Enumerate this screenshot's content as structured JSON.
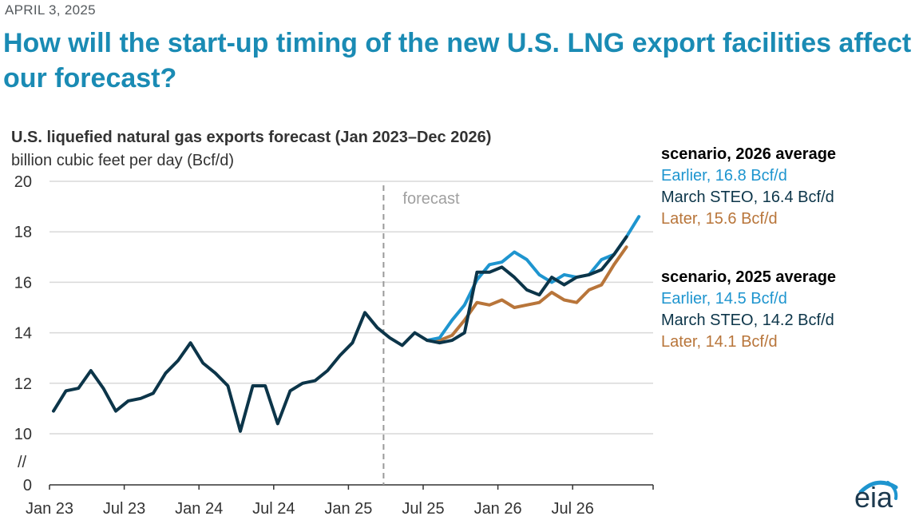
{
  "header": {
    "date": "APRIL 3, 2025",
    "headline": "How will the start-up timing of the new U.S. LNG export facilities affect our forecast?"
  },
  "chart_data": {
    "type": "line",
    "title": "U.S. liquefied natural gas exports forecast (Jan 2023–Dec 2026)",
    "ylabel": "billion cubic feet per day (Bcf/d)",
    "xlabel": "",
    "ylim": [
      0,
      20
    ],
    "axis_break": "//",
    "yticks": [
      {
        "label": "20",
        "value": 20
      },
      {
        "label": "18",
        "value": 18
      },
      {
        "label": "16",
        "value": 16
      },
      {
        "label": "14",
        "value": 14
      },
      {
        "label": "12",
        "value": 12
      },
      {
        "label": "10",
        "value": 10
      },
      {
        "label": "0",
        "value": 0
      }
    ],
    "xticks": [
      {
        "label": "Jan 23",
        "index": 0
      },
      {
        "label": "Jul 23",
        "index": 6
      },
      {
        "label": "Jan 24",
        "index": 12
      },
      {
        "label": "Jul 24",
        "index": 18
      },
      {
        "label": "Jan 25",
        "index": 24
      },
      {
        "label": "Jul 25",
        "index": 30
      },
      {
        "label": "Jan 26",
        "index": 36
      },
      {
        "label": "Jul 26",
        "index": 42
      }
    ],
    "forecast_label": "forecast",
    "forecast_start_index": 26.5,
    "series": [
      {
        "name": "Later",
        "color": "#b8753a",
        "start_index": 30,
        "values": [
          13.7,
          13.7,
          13.9,
          14.5,
          15.2,
          15.1,
          15.3,
          15.0,
          15.1,
          15.2,
          15.6,
          15.3,
          15.2,
          15.7,
          15.9,
          16.7,
          17.4
        ]
      },
      {
        "name": "Earlier",
        "color": "#1e95cf",
        "start_index": 30,
        "values": [
          13.7,
          13.8,
          14.5,
          15.1,
          16.1,
          16.7,
          16.8,
          17.2,
          16.9,
          16.3,
          16.0,
          16.3,
          16.2,
          16.3,
          16.9,
          17.1,
          17.8,
          18.6
        ]
      },
      {
        "name": "March STEO",
        "color": "#0c3549",
        "start_index": 0,
        "values": [
          10.9,
          11.7,
          11.8,
          12.5,
          11.8,
          10.9,
          11.3,
          11.4,
          11.6,
          12.4,
          12.9,
          13.6,
          12.8,
          12.4,
          11.9,
          10.1,
          11.9,
          11.9,
          10.4,
          11.7,
          12.0,
          12.1,
          12.5,
          13.1,
          13.6,
          14.8,
          14.2,
          13.8,
          13.5,
          14.0,
          13.7,
          13.6,
          13.7,
          14.0,
          16.4,
          16.4,
          16.6,
          16.2,
          15.7,
          15.5,
          16.2,
          15.9,
          16.2,
          16.3,
          16.5,
          17.1,
          17.8
        ]
      }
    ],
    "legend": {
      "placement": "right",
      "groups": [
        {
          "header": "scenario, 2026 average",
          "entries": [
            {
              "label": "Earlier, 16.8 Bcf/d",
              "series": "Earlier",
              "value": 16.8
            },
            {
              "label": "March STEO, 16.4 Bcf/d",
              "series": "March STEO",
              "value": 16.4
            },
            {
              "label": "Later, 15.6 Bcf/d",
              "series": "Later",
              "value": 15.6
            }
          ]
        },
        {
          "header": "scenario, 2025 average",
          "entries": [
            {
              "label": "Earlier, 14.5 Bcf/d",
              "series": "Earlier",
              "value": 14.5
            },
            {
              "label": "March STEO, 14.2 Bcf/d",
              "series": "March STEO",
              "value": 14.2
            },
            {
              "label": "Later, 14.1 Bcf/d",
              "series": "Later",
              "value": 14.1
            }
          ]
        }
      ]
    }
  },
  "logo": {
    "text": "eia"
  }
}
